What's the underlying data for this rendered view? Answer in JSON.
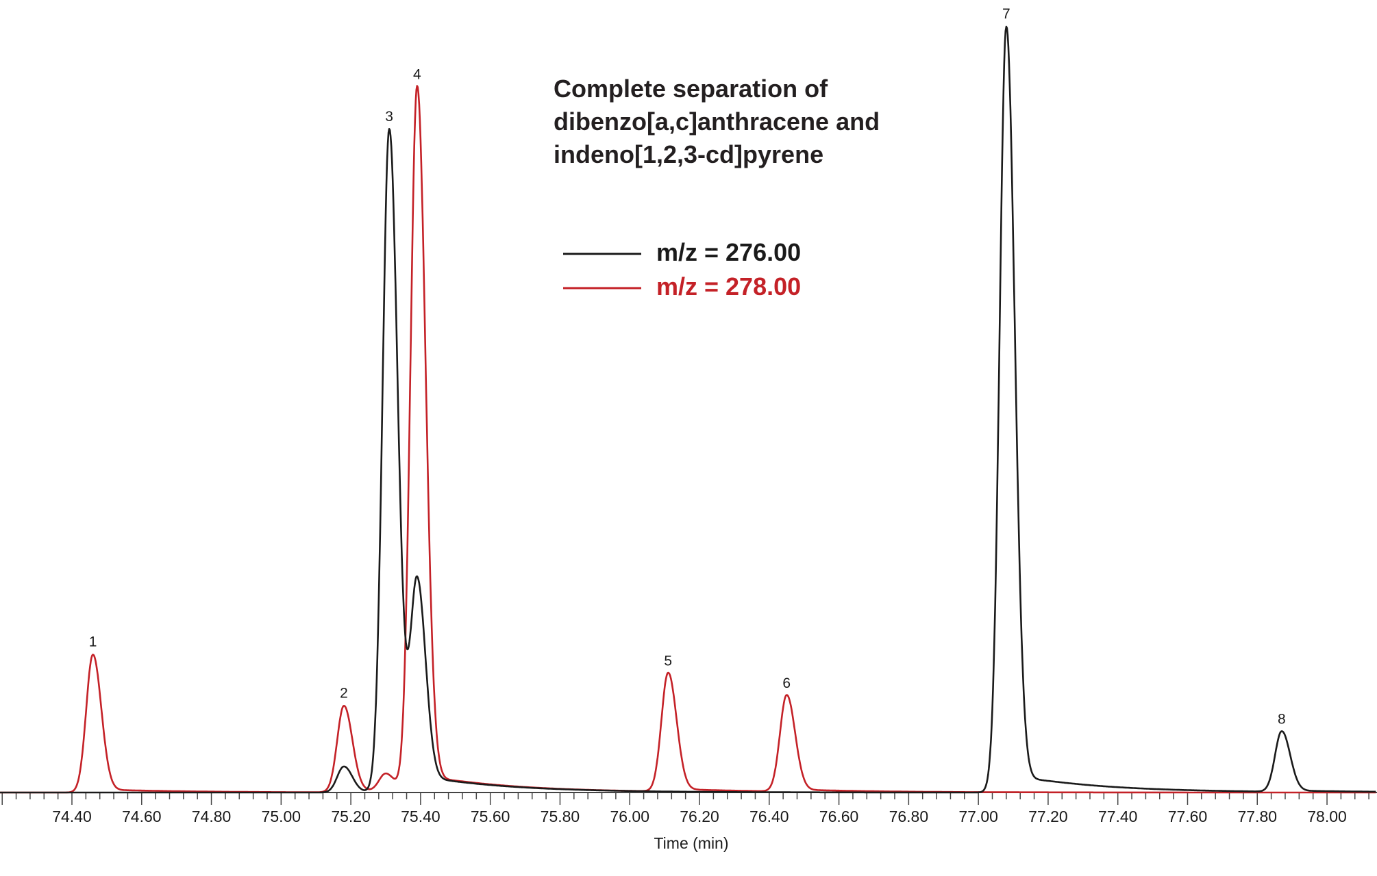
{
  "chart_data": {
    "type": "line",
    "title_lines": [
      "Complete separation of",
      "dibenzo[a,c]anthracene and",
      "indeno[1,2,3-cd]pyrene"
    ],
    "xlabel": "Time (min)",
    "ylabel": "",
    "xlim": [
      74.19,
      78.14
    ],
    "x_ticks": [
      "74.40",
      "74.60",
      "74.80",
      "75.00",
      "75.20",
      "75.40",
      "75.60",
      "75.80",
      "76.00",
      "76.20",
      "76.40",
      "76.60",
      "76.80",
      "77.00",
      "77.20",
      "77.40",
      "77.60",
      "77.80",
      "78.00"
    ],
    "y_axis_shown": false,
    "grid": false,
    "legend_position": "top-center",
    "series": [
      {
        "name": "m/z = 276.00",
        "color": "#1a1a1a",
        "peaks": [
          {
            "time": 75.18,
            "height": 3.4
          },
          {
            "time": 75.31,
            "height": 86.6,
            "label": "3"
          },
          {
            "time": 75.39,
            "height": 26.4
          },
          {
            "time": 77.08,
            "height": 100,
            "label": "7"
          },
          {
            "time": 77.87,
            "height": 7.9,
            "label": "8"
          }
        ]
      },
      {
        "name": "m/z = 278.00",
        "color": "#c42127",
        "peaks": [
          {
            "time": 74.46,
            "height": 18.0,
            "label": "1"
          },
          {
            "time": 75.18,
            "height": 11.3,
            "label": "2"
          },
          {
            "time": 75.3,
            "height": 2.3
          },
          {
            "time": 75.39,
            "height": 92.1,
            "label": "4"
          },
          {
            "time": 76.11,
            "height": 15.5,
            "label": "5"
          },
          {
            "time": 76.45,
            "height": 12.6,
            "label": "6"
          }
        ]
      }
    ]
  }
}
